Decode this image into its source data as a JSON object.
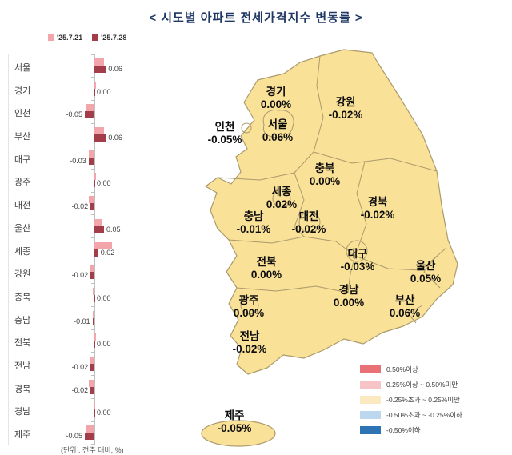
{
  "title": "< 시도별 아파트 전세가격지수 변동률 >",
  "unit_note": "(단위 : 전주 대비, %)",
  "legend": {
    "series": [
      {
        "label": "'25.7.21",
        "color": "#F2A5AB"
      },
      {
        "label": "'25.7.28",
        "color": "#A23D49"
      }
    ]
  },
  "chart_data": {
    "type": "bar",
    "orientation": "horizontal",
    "categories": [
      "서울",
      "경기",
      "인천",
      "부산",
      "대구",
      "광주",
      "대전",
      "울산",
      "세종",
      "강원",
      "충북",
      "충남",
      "전북",
      "전남",
      "경북",
      "경남",
      "제주"
    ],
    "series": [
      {
        "name": "'25.7.21",
        "values": [
          0.05,
          0.01,
          -0.04,
          0.05,
          -0.03,
          0.01,
          -0.03,
          0.04,
          0.09,
          -0.02,
          -0.01,
          -0.01,
          0.01,
          -0.02,
          -0.03,
          0.0,
          -0.04
        ],
        "note": "values estimated from bar lengths (no data labels shown for this series)"
      },
      {
        "name": "'25.7.28",
        "values": [
          0.06,
          0.0,
          -0.05,
          0.06,
          -0.03,
          0.0,
          -0.02,
          0.05,
          0.02,
          -0.02,
          0.0,
          -0.01,
          0.0,
          -0.02,
          -0.02,
          0.0,
          -0.05
        ]
      }
    ],
    "value_labels": [
      "0.06",
      "0.00",
      "-0.05",
      "0.06",
      "-0.03",
      "0.00",
      "-0.02",
      "0.05",
      "0.02",
      "-0.02",
      "0.00",
      "-0.01",
      "0.00",
      "-0.02",
      "-0.02",
      "0.00",
      "-0.05"
    ],
    "unit": "전주 대비, %",
    "legend_position": "top"
  },
  "map": {
    "fill_color": "#FAE198",
    "border_color": "#AB9A6B",
    "regions": [
      {
        "name": "경기",
        "value": "0.00%"
      },
      {
        "name": "강원",
        "value": "-0.02%"
      },
      {
        "name": "인천",
        "value": "-0.05%"
      },
      {
        "name": "서울",
        "value": "0.06%"
      },
      {
        "name": "충북",
        "value": "0.00%"
      },
      {
        "name": "세종",
        "value": "0.02%"
      },
      {
        "name": "충남",
        "value": "-0.01%"
      },
      {
        "name": "대전",
        "value": "-0.02%"
      },
      {
        "name": "경북",
        "value": "-0.02%"
      },
      {
        "name": "전북",
        "value": "0.00%"
      },
      {
        "name": "대구",
        "value": "-0.03%"
      },
      {
        "name": "울산",
        "value": "0.05%"
      },
      {
        "name": "광주",
        "value": "0.00%"
      },
      {
        "name": "경남",
        "value": "0.00%"
      },
      {
        "name": "부산",
        "value": "0.06%"
      },
      {
        "name": "전남",
        "value": "-0.02%"
      },
      {
        "name": "제주",
        "value": "-0.05%"
      }
    ]
  },
  "map_legend": [
    {
      "label": "0.50%이상",
      "color": "#E97077"
    },
    {
      "label": "0.25%이상 ~ 0.50%미만",
      "color": "#F6C3C7"
    },
    {
      "label": "-0.25%초과 ~ 0.25%미만",
      "color": "#FCE9BF"
    },
    {
      "label": "-0.50%초과 ~ -0.25%이하",
      "color": "#BDD7EE"
    },
    {
      "label": "-0.50%이하",
      "color": "#2E74B5"
    }
  ]
}
